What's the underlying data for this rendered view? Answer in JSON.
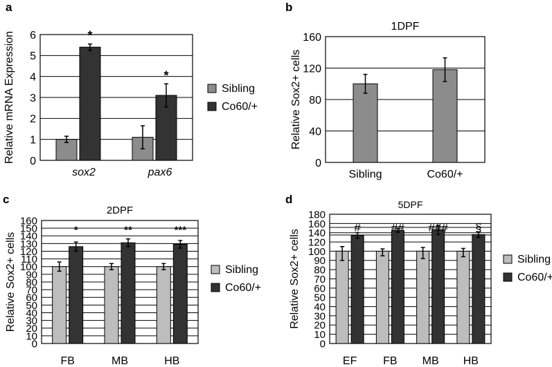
{
  "colors": {
    "sibling_dark": "#8c8c8c",
    "sibling_light": "#bdbdbd",
    "mutant": "#333333",
    "grid": "#000000"
  },
  "chart_data": [
    {
      "panel": "a",
      "type": "bar",
      "title": "",
      "ylabel": "Relative mRNA Expression",
      "xlabel": "",
      "categories": [
        "sox2",
        "pax6"
      ],
      "ylim": [
        0,
        6
      ],
      "yticks": [
        "0",
        "1",
        "2",
        "3",
        "4",
        "5",
        "6"
      ],
      "grid": true,
      "legend": "right",
      "series": [
        {
          "name": "Sibling",
          "values": [
            1.0,
            1.1
          ],
          "errors": [
            0.15,
            0.55
          ]
        },
        {
          "name": "Co60/+",
          "values": [
            5.4,
            3.1
          ],
          "errors": [
            0.15,
            0.55
          ]
        }
      ],
      "annotations": [
        "*",
        "*"
      ]
    },
    {
      "panel": "b",
      "type": "bar",
      "title": "1DPF",
      "ylabel": "Relative Sox2+ cells",
      "xlabel": "",
      "categories": [
        "Sibling",
        "Co60/+"
      ],
      "ylim": [
        0,
        160
      ],
      "yticks": [
        "0",
        "40",
        "80",
        "120",
        "160"
      ],
      "grid": true,
      "series": [
        {
          "name": "",
          "values": [
            100,
            118
          ],
          "errors": [
            12,
            15
          ]
        }
      ]
    },
    {
      "panel": "c",
      "type": "bar",
      "title": "2DPF",
      "ylabel": "Relative Sox2+ cells",
      "xlabel": "",
      "categories": [
        "FB",
        "MB",
        "HB"
      ],
      "ylim": [
        0,
        160
      ],
      "yticks": [
        "0",
        "10",
        "20",
        "30",
        "40",
        "50",
        "60",
        "70",
        "80",
        "90",
        "100",
        "110",
        "120",
        "130",
        "140",
        "150",
        "160"
      ],
      "grid": true,
      "legend": "right",
      "series": [
        {
          "name": "Sibling",
          "values": [
            100,
            100,
            100
          ],
          "errors": [
            6,
            4,
            4
          ]
        },
        {
          "name": "Co60/+",
          "values": [
            126,
            131,
            129
          ],
          "errors": [
            6,
            5,
            5
          ]
        }
      ],
      "annotations": [
        "*",
        "**",
        "***"
      ]
    },
    {
      "panel": "d",
      "type": "bar",
      "title": "5DPF",
      "ylabel": "Relative Sox2+ cells",
      "xlabel": "",
      "categories": [
        "EF",
        "FB",
        "MB",
        "HB"
      ],
      "ylim": [
        0,
        180
      ],
      "yticks": [
        "0",
        "10",
        "20",
        "30",
        "40",
        "50",
        "60",
        "70",
        "80",
        "90",
        "100",
        "120",
        "140",
        "160",
        "180"
      ],
      "grid": true,
      "legend": "right",
      "series": [
        {
          "name": "Sibling",
          "values": [
            100,
            100,
            100,
            100
          ],
          "errors": [
            10,
            5,
            8,
            6
          ]
        },
        {
          "name": "Co60/+",
          "values": [
            134,
            145,
            146,
            136
          ],
          "errors": [
            6,
            4,
            10,
            6
          ]
        }
      ],
      "annotations": [
        "#",
        "##",
        "###",
        "§"
      ]
    }
  ]
}
